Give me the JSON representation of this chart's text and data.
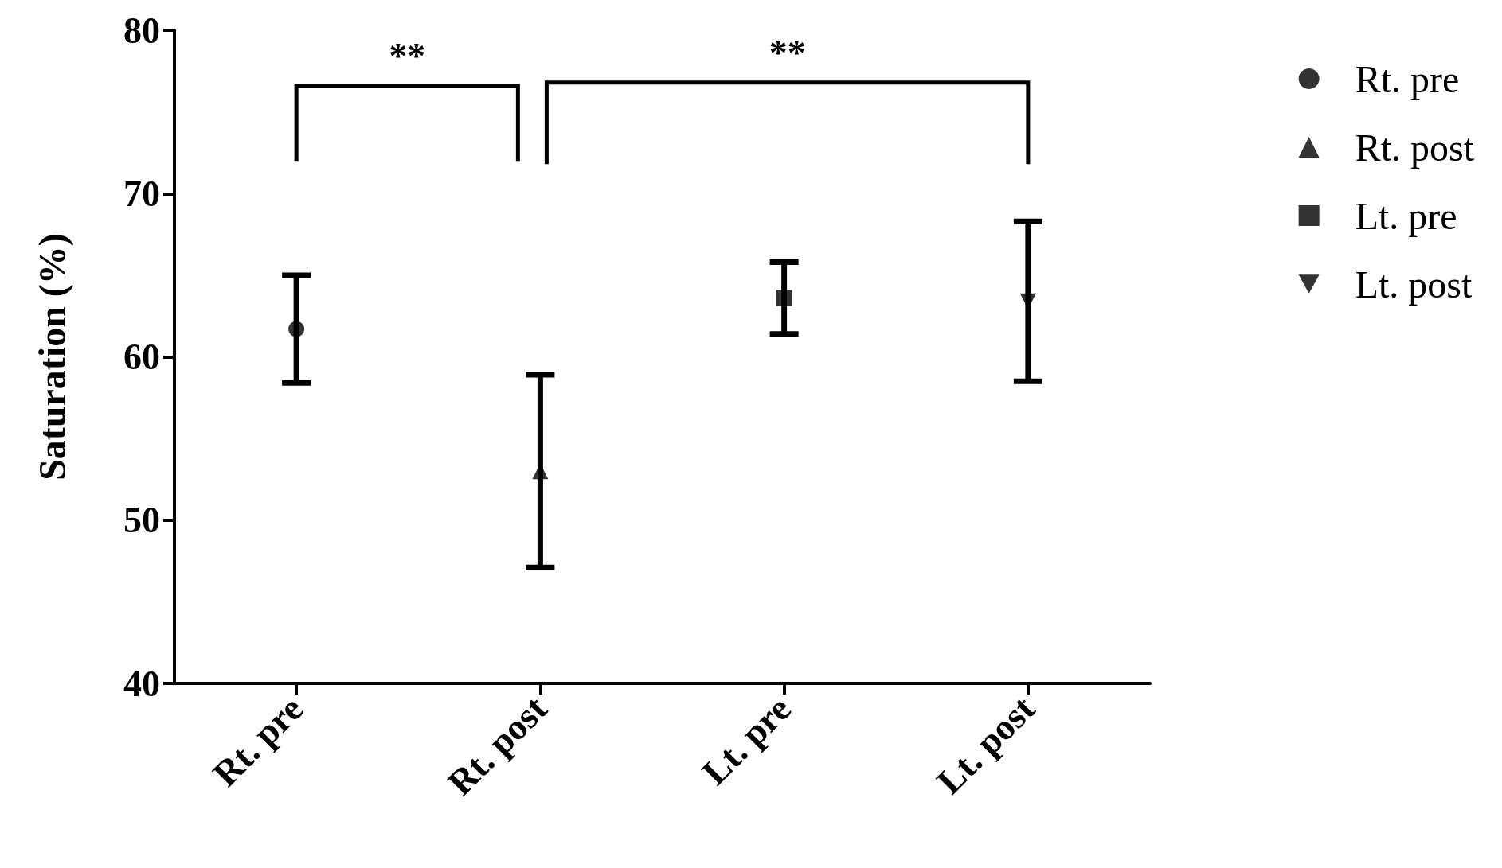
{
  "chart_data": {
    "type": "scatter",
    "ylabel": "Saturation (%)",
    "categories": [
      "Rt. pre",
      "Rt. post",
      "Lt. pre",
      "Lt. post"
    ],
    "series": [
      {
        "name": "Rt. pre",
        "color": "#000000",
        "marker": "circle",
        "x": [
          "Rt. pre"
        ],
        "values": [
          61.7
        ],
        "errors": [
          3.3
        ]
      },
      {
        "name": "Rt. post",
        "color": "#000000",
        "marker": "triangle",
        "x": [
          "Rt. post"
        ],
        "values": [
          53.0
        ],
        "errors": [
          5.9
        ]
      },
      {
        "name": "Lt. pre",
        "color": "#000000",
        "marker": "square",
        "x": [
          "Lt. pre"
        ],
        "values": [
          63.6
        ],
        "errors": [
          2.2
        ]
      },
      {
        "name": "Lt. post",
        "color": "#000000",
        "marker": "triangle-down",
        "x": [
          "Lt. post"
        ],
        "values": [
          63.4
        ],
        "errors": [
          4.9
        ]
      }
    ],
    "ylim": [
      40,
      80
    ],
    "yticks": [
      40,
      50,
      60,
      70,
      80
    ],
    "grid": false,
    "legend": "top right",
    "annotations": [
      "**",
      "**"
    ]
  }
}
